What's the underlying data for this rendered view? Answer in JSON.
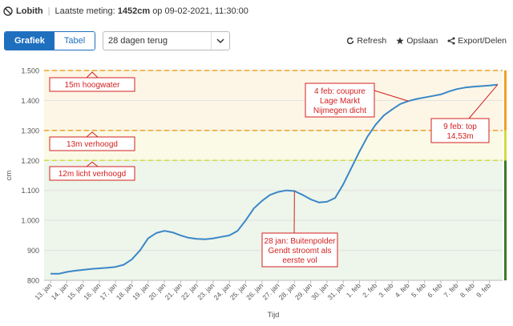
{
  "header": {
    "station": "Lobith",
    "last_label": "Laatste meting:",
    "last_value": "1452cm",
    "last_rest": "op 09-02-2021, 11:30:00"
  },
  "view": {
    "tab_chart": "Grafiek",
    "tab_table": "Tabel"
  },
  "period": {
    "selected": "28 dagen terug"
  },
  "toolbar": {
    "refresh": "Refresh",
    "save": "Opslaan",
    "export": "Export/Delen"
  },
  "colors": {
    "line": "#3a87c8",
    "orange": "#f0a020",
    "yellow": "#d4dc3c",
    "annotation": "#d42020",
    "green_zone": "#eef5ea",
    "yellow_zone": "#fafae6",
    "orange_zone": "#fdf6e6"
  },
  "chart_data": {
    "type": "line",
    "ylabel": "cm",
    "xlabel": "Tijd",
    "ylim": [
      800,
      1500
    ],
    "yticks": [
      "800",
      "900",
      "1.000",
      "1.100",
      "1.200",
      "1.300",
      "1.400",
      "1.500"
    ],
    "ytick_values": [
      800,
      900,
      1000,
      1100,
      1200,
      1300,
      1400,
      1500
    ],
    "xlim": [
      12.6,
      40.8
    ],
    "xticks": [
      "13. jan",
      "14. jan",
      "15. jan",
      "16. jan",
      "17. jan",
      "18. jan",
      "19. jan",
      "20. jan",
      "21. jan",
      "22. jan",
      "23. jan",
      "24. jan",
      "25. jan",
      "26. jan",
      "27. jan",
      "28. jan",
      "29. jan",
      "30. jan",
      "31. jan",
      "1. feb",
      "2. feb",
      "3. feb",
      "4. feb",
      "5. feb",
      "6. feb",
      "7. feb",
      "8. feb",
      "9. feb"
    ],
    "series": [
      {
        "x": [
          13,
          13.5,
          14,
          14.5,
          15,
          15.5,
          16,
          16.5,
          17,
          17.5,
          18,
          18.5,
          19,
          19.5,
          20,
          20.5,
          21,
          21.5,
          22,
          22.5,
          23,
          23.5,
          24,
          24.5,
          25,
          25.5,
          26,
          26.5,
          27,
          27.5,
          28,
          28.5,
          29,
          29.5,
          30,
          30.5,
          31,
          31.5,
          32,
          32.5,
          33,
          33.5,
          34,
          34.5,
          35,
          35.5,
          36,
          36.5,
          37,
          37.5,
          38,
          38.5,
          39,
          39.5,
          40,
          40.5
        ],
        "values": [
          822,
          822,
          828,
          832,
          835,
          838,
          840,
          842,
          845,
          852,
          870,
          900,
          940,
          958,
          965,
          960,
          950,
          942,
          938,
          937,
          940,
          945,
          950,
          965,
          1000,
          1040,
          1065,
          1085,
          1095,
          1100,
          1098,
          1085,
          1070,
          1060,
          1062,
          1075,
          1120,
          1175,
          1230,
          1280,
          1320,
          1350,
          1370,
          1388,
          1398,
          1405,
          1410,
          1415,
          1420,
          1430,
          1438,
          1443,
          1446,
          1448,
          1450,
          1453
        ]
      }
    ],
    "thresholds": [
      {
        "value": 1500,
        "label": "15m hoogwater",
        "color": "#f0a020"
      },
      {
        "value": 1300,
        "label": "13m verhoogd",
        "color": "#f0a020"
      },
      {
        "value": 1200,
        "label": "12m licht verhoogd",
        "color": "#d4dc3c"
      }
    ],
    "annotations": [
      {
        "lines": [
          "28 jan: Buitenpolder",
          "Gendt stroomt als",
          "eerste vol"
        ],
        "x": 28,
        "y": 1098
      },
      {
        "lines": [
          "4 feb: coupure",
          "Lage Markt",
          "Nijmegen dicht"
        ],
        "x": 35,
        "y": 1398
      },
      {
        "lines": [
          "9 feb: top",
          "14,53m"
        ],
        "x": 40.5,
        "y": 1453
      }
    ],
    "grid": true
  }
}
